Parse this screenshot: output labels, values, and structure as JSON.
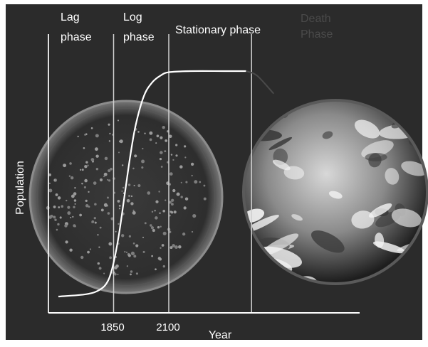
{
  "chart_data": {
    "type": "line",
    "xlabel": "Year",
    "ylabel": "Population",
    "x_tick_labels": [
      "1850",
      "2100"
    ],
    "phases": [
      {
        "lines": [
          "Lag",
          "phase"
        ]
      },
      {
        "lines": [
          "Log",
          "phase"
        ]
      },
      {
        "lines": [
          "Stationary phase"
        ]
      },
      {
        "lines": [
          "Death",
          "Phase"
        ]
      }
    ],
    "series": [
      {
        "curve": "sigmoid growth then plateau, fading out in death phase",
        "points": [
          [
            0.0,
            0.0
          ],
          [
            0.5,
            0.01
          ],
          [
            0.75,
            0.03
          ],
          [
            0.9,
            0.07
          ],
          [
            1.0,
            0.15
          ],
          [
            1.1,
            0.28
          ],
          [
            1.2,
            0.45
          ],
          [
            1.3,
            0.62
          ],
          [
            1.4,
            0.76
          ],
          [
            1.55,
            0.89
          ],
          [
            1.7,
            0.95
          ],
          [
            1.85,
            0.98
          ],
          [
            2.0,
            0.995
          ],
          [
            2.4,
            1.0
          ],
          [
            3.0,
            1.0
          ],
          [
            3.4,
            1.0
          ],
          [
            3.6,
            0.98
          ],
          [
            3.9,
            0.9
          ]
        ]
      }
    ],
    "phase_boundaries": [
      1.0,
      2.0,
      3.5
    ],
    "colors": {
      "background": "#2b2b2b",
      "foreground": "#ffffff",
      "death_text": "#4a4a4a"
    },
    "images": [
      "petri-dish-with-bacterial-colonies",
      "earth-globe"
    ]
  }
}
